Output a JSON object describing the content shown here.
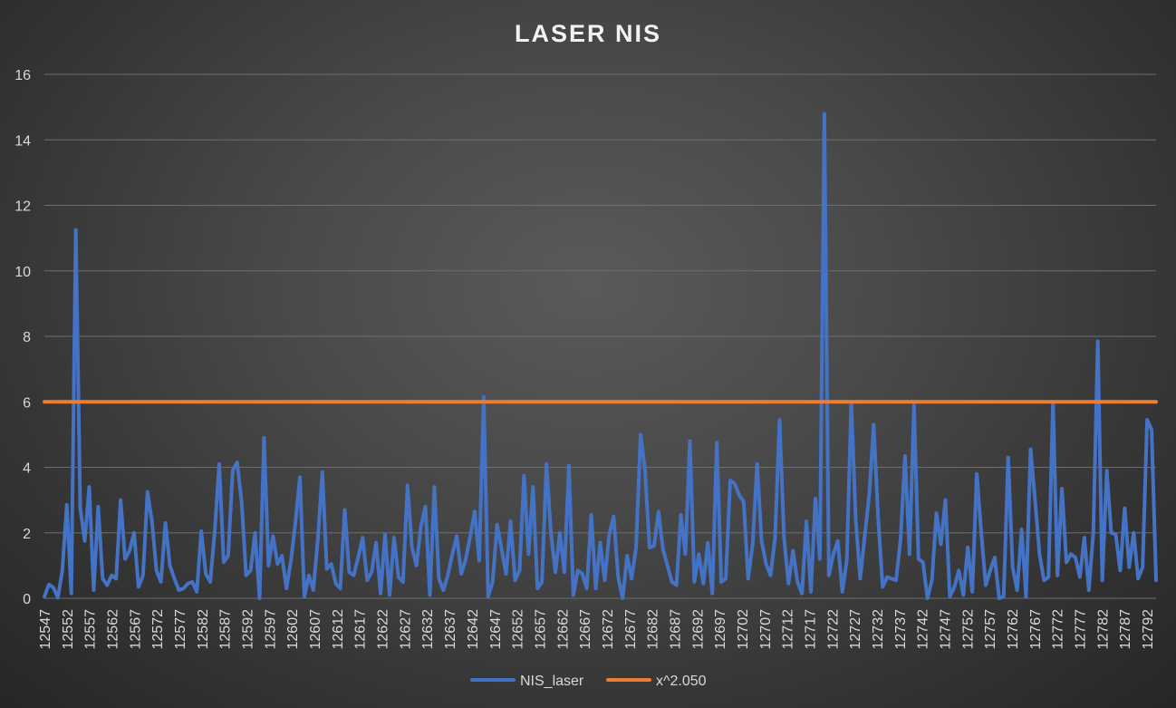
{
  "chart_data": {
    "type": "line",
    "title": "LASER NIS",
    "xlabel": "",
    "ylabel": "",
    "ylim": [
      0,
      16
    ],
    "yticks": [
      0,
      2,
      4,
      6,
      8,
      10,
      12,
      14,
      16
    ],
    "x_start": 12547,
    "x_end": 12794,
    "x_tick_labels": [
      "12547",
      "12552",
      "12557",
      "12562",
      "12567",
      "12572",
      "12577",
      "12582",
      "12587",
      "12592",
      "12597",
      "12602",
      "12607",
      "12612",
      "12617",
      "12622",
      "12627",
      "12632",
      "12637",
      "12642",
      "12647",
      "12652",
      "12657",
      "12662",
      "12667",
      "12672",
      "12677",
      "12682",
      "12687",
      "12692",
      "12697",
      "12702",
      "12707",
      "12712",
      "12717",
      "12722",
      "12727",
      "12732",
      "12737",
      "12742",
      "12747",
      "12752",
      "12757",
      "12762",
      "12767",
      "12772",
      "12777",
      "12782",
      "12787",
      "12792"
    ],
    "grid": true,
    "legend_position": "bottom",
    "series": [
      {
        "name": "NIS_laser",
        "color": "#4472c4",
        "values": [
          0.05,
          0.42,
          0.33,
          0.02,
          0.85,
          2.85,
          0.15,
          11.25,
          2.75,
          1.75,
          3.4,
          0.25,
          2.8,
          0.6,
          0.4,
          0.7,
          0.6,
          3.0,
          1.2,
          1.45,
          2.0,
          0.35,
          0.7,
          3.25,
          2.35,
          0.85,
          0.5,
          2.3,
          1.0,
          0.6,
          0.25,
          0.3,
          0.45,
          0.5,
          0.2,
          2.05,
          0.75,
          0.5,
          2.05,
          4.1,
          1.1,
          1.3,
          3.9,
          4.15,
          2.95,
          0.7,
          0.85,
          2.0,
          0.0,
          4.9,
          1.0,
          1.9,
          1.05,
          1.3,
          0.3,
          1.15,
          2.3,
          3.7,
          0.05,
          0.7,
          0.25,
          1.8,
          3.85,
          0.9,
          1.05,
          0.45,
          0.3,
          2.7,
          0.8,
          0.7,
          1.25,
          1.85,
          0.55,
          0.8,
          1.7,
          0.15,
          1.95,
          0.1,
          1.85,
          0.65,
          0.5,
          3.45,
          1.55,
          1.0,
          2.2,
          2.8,
          0.1,
          3.4,
          0.6,
          0.25,
          0.7,
          1.35,
          1.9,
          0.75,
          1.2,
          1.9,
          2.65,
          1.15,
          6.15,
          0.05,
          0.5,
          2.25,
          1.5,
          0.75,
          2.35,
          0.55,
          0.85,
          3.75,
          1.35,
          3.4,
          0.3,
          0.5,
          4.1,
          2.0,
          0.8,
          2.0,
          0.8,
          4.05,
          0.1,
          0.85,
          0.75,
          0.3,
          2.55,
          0.3,
          1.7,
          0.55,
          1.95,
          2.5,
          0.65,
          0.0,
          1.3,
          0.6,
          1.55,
          5.0,
          3.9,
          1.55,
          1.6,
          2.65,
          1.5,
          1.0,
          0.5,
          0.4,
          2.55,
          1.35,
          4.8,
          0.5,
          1.35,
          0.45,
          1.7,
          0.15,
          4.75,
          0.5,
          0.6,
          3.6,
          3.5,
          3.15,
          2.95,
          0.6,
          1.65,
          4.1,
          1.75,
          1.05,
          0.7,
          1.85,
          5.45,
          1.85,
          0.45,
          1.45,
          0.5,
          0.15,
          2.35,
          0.2,
          3.05,
          1.2,
          14.8,
          0.7,
          1.35,
          1.75,
          0.2,
          1.15,
          6.0,
          2.4,
          0.6,
          1.9,
          3.15,
          5.3,
          2.45,
          0.35,
          0.65,
          0.6,
          0.55,
          1.8,
          4.35,
          1.35,
          5.9,
          1.2,
          1.1,
          0.0,
          0.55,
          2.6,
          1.65,
          3.0,
          0.05,
          0.35,
          0.85,
          0.1,
          1.55,
          0.2,
          3.8,
          2.0,
          0.4,
          0.85,
          1.25,
          0.0,
          0.05,
          4.3,
          0.95,
          0.25,
          2.1,
          0.05,
          4.55,
          3.0,
          1.35,
          0.55,
          0.65,
          6.0,
          0.7,
          3.35,
          1.1,
          1.35,
          1.25,
          0.65,
          1.85,
          0.25,
          2.0,
          7.85,
          0.55,
          3.9,
          2.0,
          1.95,
          0.85,
          2.75,
          0.95,
          2.0,
          0.6,
          0.95,
          5.45,
          5.15,
          0.55
        ]
      },
      {
        "name": "x^2.050",
        "color": "#ed7d31",
        "values": [
          6.0,
          6.0
        ]
      }
    ]
  }
}
